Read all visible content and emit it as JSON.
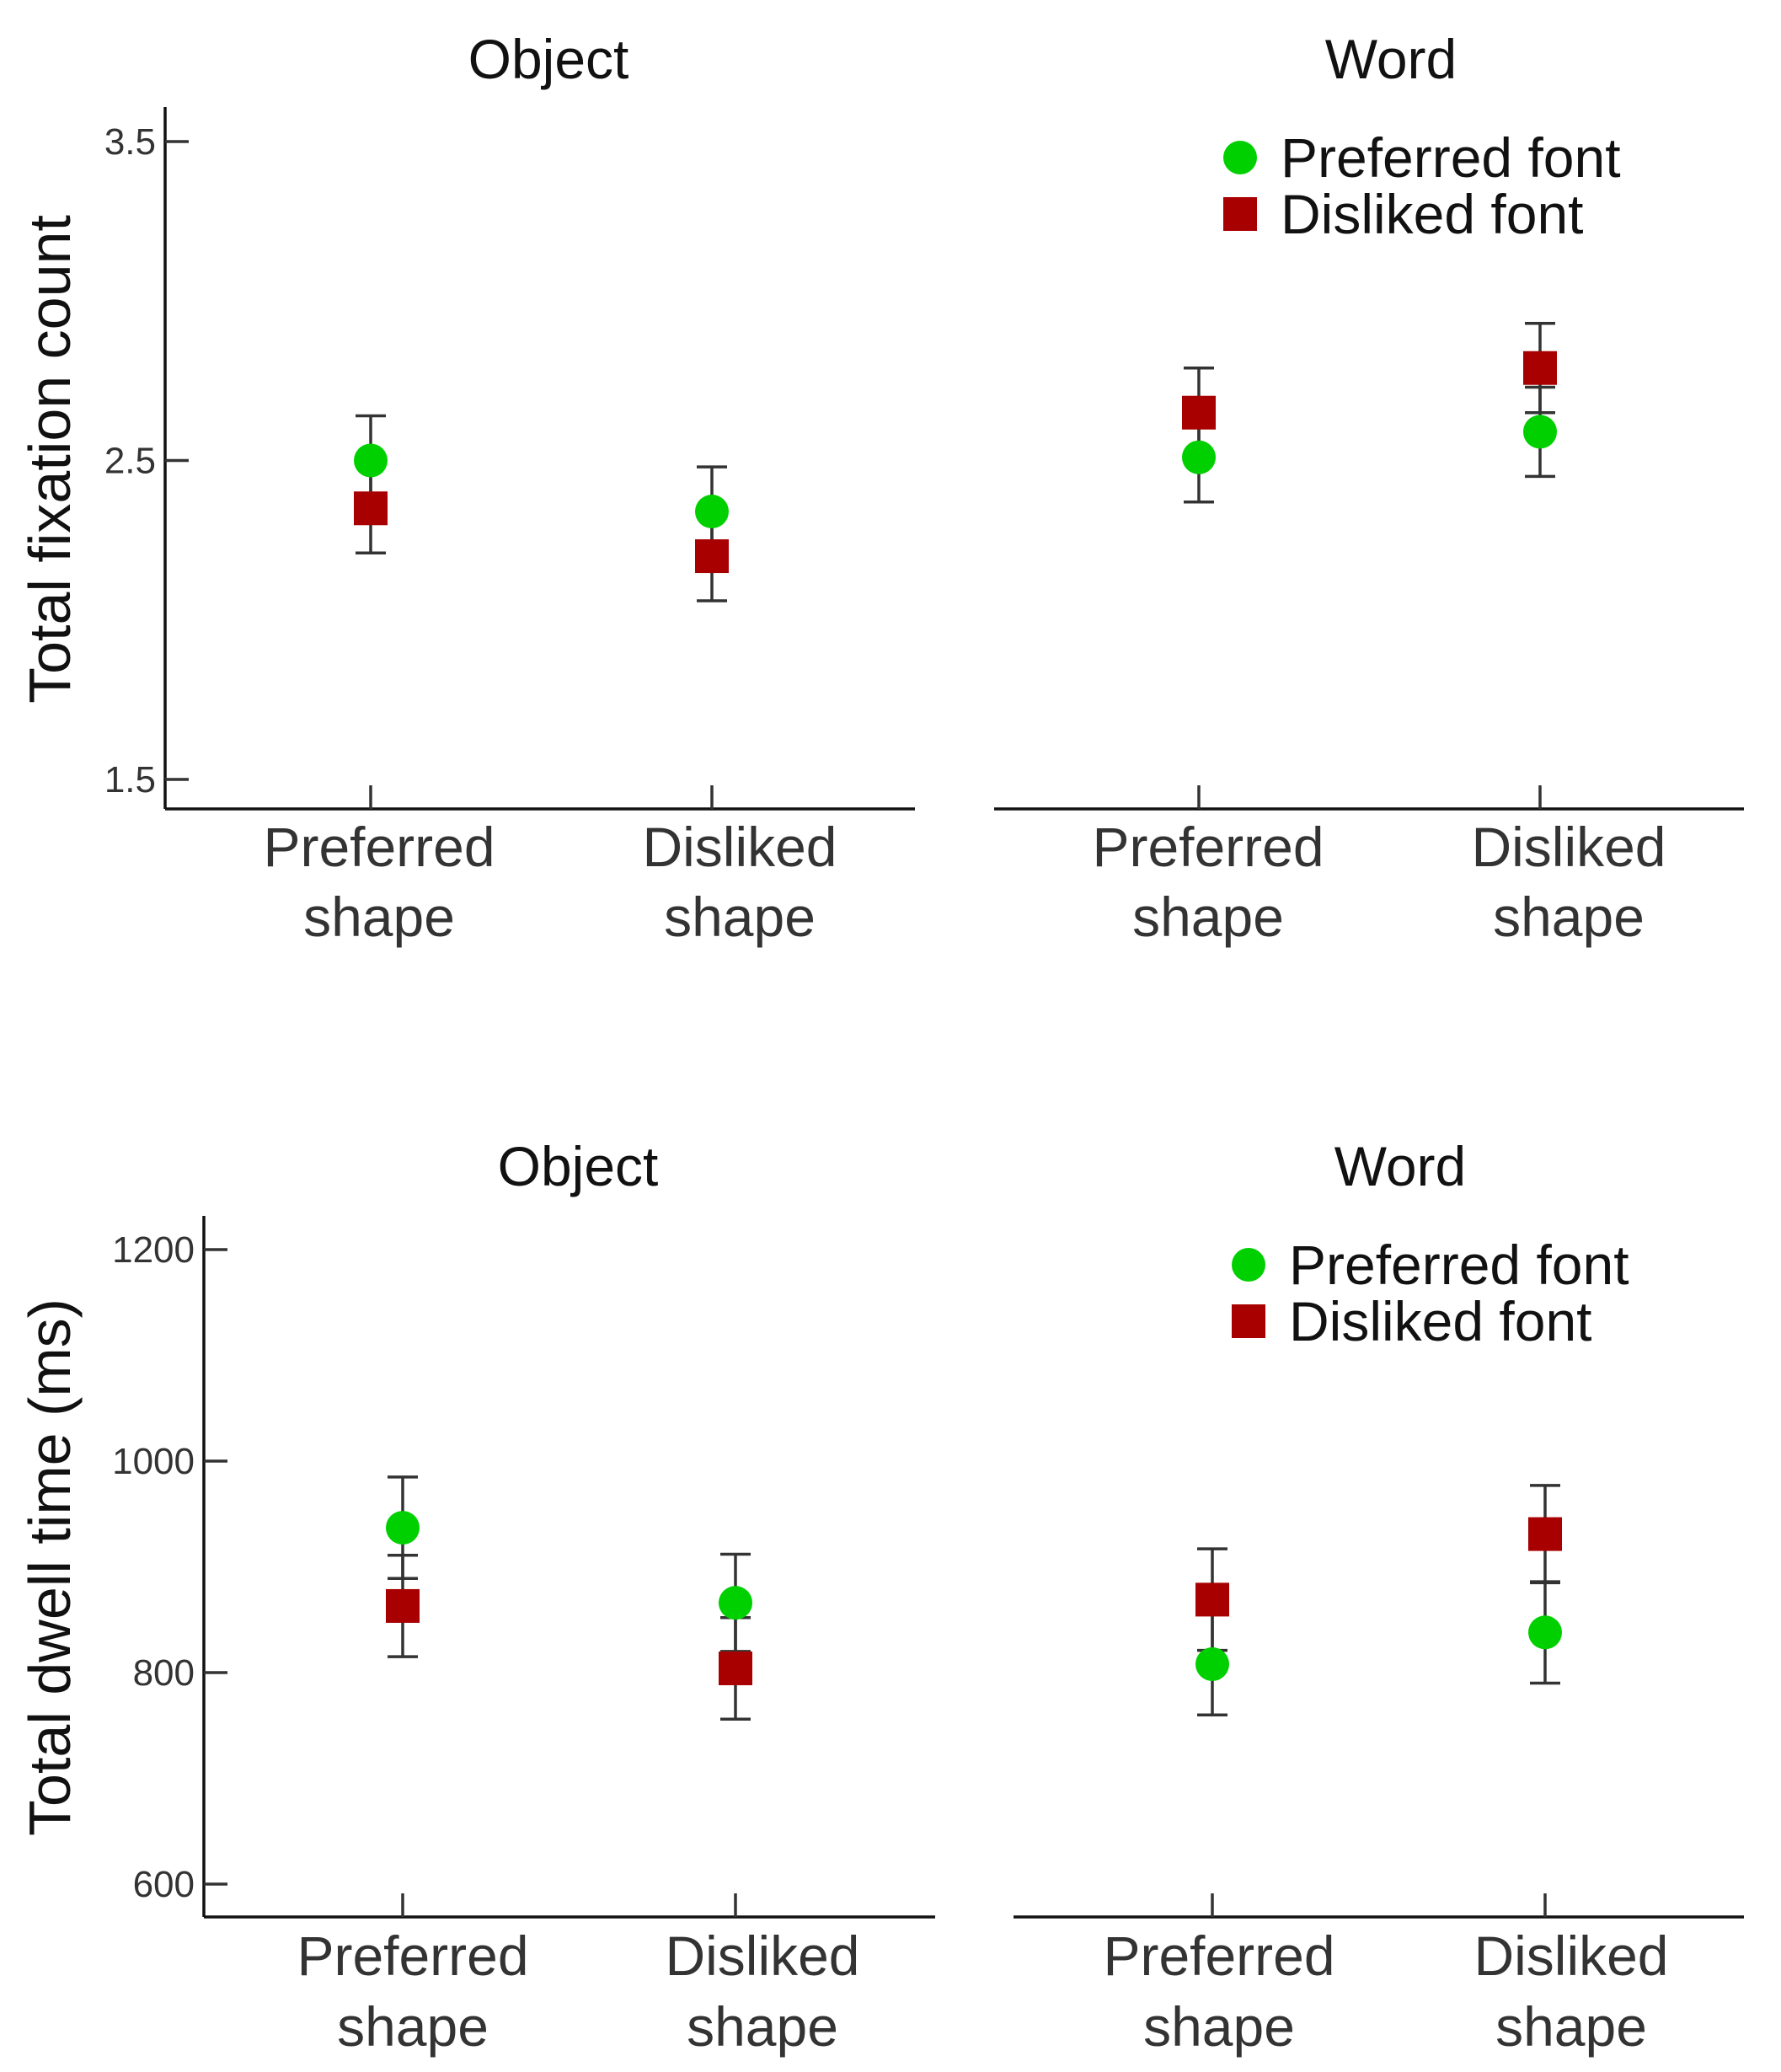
{
  "colors": {
    "preferred_font": "#00d000",
    "disliked_font": "#a80000",
    "axis": "#111111",
    "text": "#333333"
  },
  "chart_data": [
    {
      "type": "scatter",
      "title": "Object",
      "ylabel": "Total fixation count",
      "ylim": [
        1.4,
        3.6
      ],
      "yticks": [
        1.5,
        2.5,
        3.5
      ],
      "ytick_labels": [
        "1.5",
        "2.5",
        "3.5"
      ],
      "categories": [
        "Preferred\nshape",
        "Disliked\nshape"
      ],
      "legend": null,
      "series": [
        {
          "name": "Preferred font",
          "marker": "circle",
          "values": [
            2.5,
            2.34
          ],
          "err": [
            0.14,
            0.14
          ]
        },
        {
          "name": "Disliked font",
          "marker": "square",
          "values": [
            2.35,
            2.2
          ],
          "err": [
            0.14,
            0.14
          ]
        }
      ]
    },
    {
      "type": "scatter",
      "title": "Word",
      "ylabel": "",
      "ylim": [
        1.4,
        3.6
      ],
      "yticks": [],
      "ytick_labels": [],
      "categories": [
        "Preferred\nshape",
        "Disliked\nshape"
      ],
      "legend": {
        "placement": "top-right",
        "entries": [
          "Preferred font",
          "Disliked font"
        ]
      },
      "series": [
        {
          "name": "Preferred font",
          "marker": "circle",
          "values": [
            2.51,
            2.59
          ],
          "err": [
            0.14,
            0.14
          ]
        },
        {
          "name": "Disliked font",
          "marker": "square",
          "values": [
            2.65,
            2.79
          ],
          "err": [
            0.14,
            0.14
          ]
        }
      ]
    },
    {
      "type": "scatter",
      "title": "Object",
      "ylabel": "Total dwell time (ms)",
      "ylim": [
        590,
        1220
      ],
      "yticks": [
        600,
        800,
        1000,
        1200
      ],
      "ytick_labels": [
        "600",
        "800",
        "1000",
        "1200"
      ],
      "categories": [
        "Preferred\nshape",
        "Disliked\nshape"
      ],
      "legend": null,
      "series": [
        {
          "name": "Preferred font",
          "marker": "circle",
          "values": [
            937,
            866
          ],
          "err": [
            48,
            46
          ]
        },
        {
          "name": "Disliked font",
          "marker": "square",
          "values": [
            863,
            804
          ],
          "err": [
            48,
            48
          ]
        }
      ]
    },
    {
      "type": "scatter",
      "title": "Word",
      "ylabel": "",
      "ylim": [
        590,
        1220
      ],
      "yticks": [],
      "ytick_labels": [],
      "categories": [
        "Preferred\nshape",
        "Disliked\nshape"
      ],
      "legend": {
        "placement": "top-right",
        "entries": [
          "Preferred font",
          "Disliked font"
        ]
      },
      "series": [
        {
          "name": "Preferred font",
          "marker": "circle",
          "values": [
            808,
            838
          ],
          "err": [
            48,
            48
          ]
        },
        {
          "name": "Disliked font",
          "marker": "square",
          "values": [
            869,
            931
          ],
          "err": [
            48,
            46
          ]
        }
      ]
    }
  ]
}
